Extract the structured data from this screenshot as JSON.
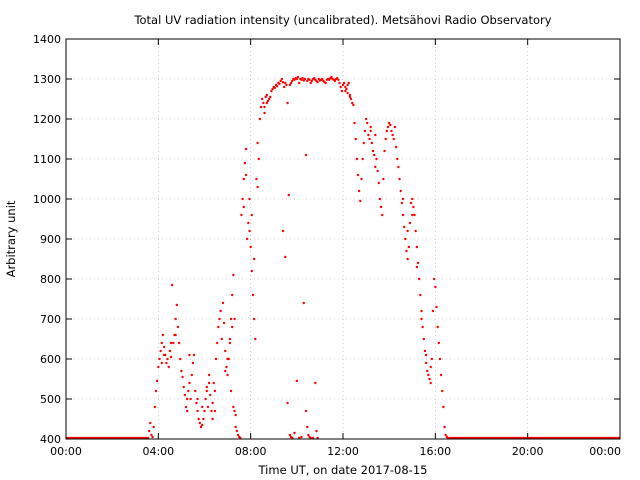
{
  "chart_data": {
    "type": "scatter",
    "title": "Total UV radiation intensity (uncalibrated). Metsähovi Radio Observatory",
    "xlabel": "Time UT, on date 2017-08-15",
    "ylabel": "Arbitrary unit",
    "x_unit": "hours UT",
    "xlim": [
      0,
      24
    ],
    "ylim": [
      400,
      1400
    ],
    "x_ticks": [
      {
        "value": 0,
        "label": "00:00"
      },
      {
        "value": 4,
        "label": "04:00"
      },
      {
        "value": 8,
        "label": "08:00"
      },
      {
        "value": 12,
        "label": "12:00"
      },
      {
        "value": 16,
        "label": "16:00"
      },
      {
        "value": 20,
        "label": "20:00"
      },
      {
        "value": 24,
        "label": "00:00"
      }
    ],
    "y_ticks": [
      {
        "value": 400,
        "label": "400"
      },
      {
        "value": 500,
        "label": "500"
      },
      {
        "value": 600,
        "label": "600"
      },
      {
        "value": 700,
        "label": "700"
      },
      {
        "value": 800,
        "label": "800"
      },
      {
        "value": 900,
        "label": "900"
      },
      {
        "value": 1000,
        "label": "1000"
      },
      {
        "value": 1100,
        "label": "1100"
      },
      {
        "value": 1200,
        "label": "1200"
      },
      {
        "value": 1300,
        "label": "1300"
      },
      {
        "value": 1400,
        "label": "1400"
      }
    ],
    "grid": true,
    "marker_color": "#ff0000",
    "baseline": {
      "y": 400,
      "x_ranges": [
        [
          0,
          3.6
        ],
        [
          16.6,
          24
        ]
      ]
    },
    "points": [
      [
        3.6,
        420
      ],
      [
        3.65,
        440
      ],
      [
        3.7,
        410
      ],
      [
        3.75,
        405
      ],
      [
        3.8,
        430
      ],
      [
        3.85,
        480
      ],
      [
        3.9,
        520
      ],
      [
        3.95,
        545
      ],
      [
        4.0,
        580
      ],
      [
        4.05,
        600
      ],
      [
        4.1,
        620
      ],
      [
        4.15,
        640
      ],
      [
        4.2,
        660
      ],
      [
        4.25,
        630
      ],
      [
        4.3,
        610
      ],
      [
        4.35,
        590
      ],
      [
        4.4,
        600
      ],
      [
        4.45,
        580
      ],
      [
        4.5,
        620
      ],
      [
        4.55,
        605
      ],
      [
        4.6,
        785
      ],
      [
        4.65,
        640
      ],
      [
        4.7,
        660
      ],
      [
        4.75,
        700
      ],
      [
        4.8,
        735
      ],
      [
        4.85,
        680
      ],
      [
        4.9,
        640
      ],
      [
        4.95,
        600
      ],
      [
        5.0,
        570
      ],
      [
        5.05,
        555
      ],
      [
        5.1,
        530
      ],
      [
        5.15,
        510
      ],
      [
        5.2,
        480
      ],
      [
        5.25,
        470
      ],
      [
        5.3,
        520
      ],
      [
        5.35,
        540
      ],
      [
        5.4,
        500
      ],
      [
        5.45,
        560
      ],
      [
        5.5,
        590
      ],
      [
        5.55,
        610
      ],
      [
        5.6,
        520
      ],
      [
        5.65,
        490
      ],
      [
        5.7,
        470
      ],
      [
        5.75,
        450
      ],
      [
        5.8,
        440
      ],
      [
        5.85,
        430
      ],
      [
        5.9,
        435
      ],
      [
        5.95,
        450
      ],
      [
        6.0,
        470
      ],
      [
        6.05,
        500
      ],
      [
        6.1,
        520
      ],
      [
        6.15,
        480
      ],
      [
        6.2,
        540
      ],
      [
        6.25,
        510
      ],
      [
        6.3,
        470
      ],
      [
        6.35,
        450
      ],
      [
        6.4,
        540
      ],
      [
        6.45,
        520
      ],
      [
        6.5,
        600
      ],
      [
        6.55,
        640
      ],
      [
        6.6,
        680
      ],
      [
        6.65,
        700
      ],
      [
        6.7,
        720
      ],
      [
        6.75,
        650
      ],
      [
        6.8,
        740
      ],
      [
        6.85,
        690
      ],
      [
        6.9,
        620
      ],
      [
        6.95,
        580
      ],
      [
        7.0,
        560
      ],
      [
        7.05,
        600
      ],
      [
        7.1,
        640
      ],
      [
        7.15,
        700
      ],
      [
        7.2,
        760
      ],
      [
        7.25,
        810
      ],
      [
        7.3,
        470
      ],
      [
        7.35,
        430
      ],
      [
        7.4,
        420
      ],
      [
        7.45,
        410
      ],
      [
        7.5,
        405
      ],
      [
        7.55,
        400
      ],
      [
        7.6,
        960
      ],
      [
        7.65,
        1000
      ],
      [
        7.7,
        1050
      ],
      [
        7.75,
        1090
      ],
      [
        7.8,
        1125
      ],
      [
        7.85,
        900
      ],
      [
        7.9,
        940
      ],
      [
        7.95,
        920
      ],
      [
        8.0,
        880
      ],
      [
        8.05,
        820
      ],
      [
        8.1,
        760
      ],
      [
        8.15,
        700
      ],
      [
        8.2,
        650
      ],
      [
        8.25,
        1050
      ],
      [
        8.3,
        1140
      ],
      [
        8.35,
        1100
      ],
      [
        8.4,
        1200
      ],
      [
        8.45,
        1230
      ],
      [
        8.5,
        1250
      ],
      [
        8.55,
        1240
      ],
      [
        8.6,
        1215
      ],
      [
        8.65,
        1255
      ],
      [
        8.7,
        1260
      ],
      [
        8.75,
        1245
      ],
      [
        8.8,
        1250
      ],
      [
        8.85,
        1255
      ],
      [
        8.9,
        1270
      ],
      [
        8.95,
        1275
      ],
      [
        9.0,
        1280
      ],
      [
        9.05,
        1278
      ],
      [
        9.1,
        1285
      ],
      [
        9.15,
        1282
      ],
      [
        9.2,
        1290
      ],
      [
        9.25,
        1288
      ],
      [
        9.3,
        1295
      ],
      [
        9.35,
        1300
      ],
      [
        9.4,
        1292
      ],
      [
        9.45,
        1280
      ],
      [
        9.5,
        1290
      ],
      [
        9.55,
        1285
      ],
      [
        9.6,
        1240
      ],
      [
        9.65,
        1010
      ],
      [
        9.7,
        1285
      ],
      [
        9.75,
        1290
      ],
      [
        9.8,
        1295
      ],
      [
        9.85,
        1300
      ],
      [
        9.9,
        1298
      ],
      [
        9.95,
        1302
      ],
      [
        10.0,
        1300
      ],
      [
        10.05,
        1305
      ],
      [
        10.1,
        1290
      ],
      [
        10.15,
        1300
      ],
      [
        10.2,
        1298
      ],
      [
        10.25,
        1302
      ],
      [
        10.3,
        1296
      ],
      [
        10.35,
        1300
      ],
      [
        10.4,
        1110
      ],
      [
        10.45,
        1295
      ],
      [
        10.5,
        1300
      ],
      [
        10.55,
        1298
      ],
      [
        10.6,
        1290
      ],
      [
        10.65,
        1295
      ],
      [
        10.7,
        1300
      ],
      [
        10.75,
        1302
      ],
      [
        10.8,
        1298
      ],
      [
        10.85,
        1295
      ],
      [
        10.9,
        1292
      ],
      [
        10.95,
        1300
      ],
      [
        11.0,
        1296
      ],
      [
        11.05,
        1298
      ],
      [
        11.1,
        1300
      ],
      [
        11.15,
        1295
      ],
      [
        11.2,
        1292
      ],
      [
        11.25,
        1290
      ],
      [
        11.3,
        1298
      ],
      [
        11.35,
        1300
      ],
      [
        11.4,
        1298
      ],
      [
        11.45,
        1302
      ],
      [
        11.5,
        1305
      ],
      [
        11.55,
        1300
      ],
      [
        11.6,
        1298
      ],
      [
        11.65,
        1295
      ],
      [
        11.7,
        1300
      ],
      [
        11.75,
        1302
      ],
      [
        11.8,
        1298
      ],
      [
        11.85,
        1290
      ],
      [
        11.9,
        1280
      ],
      [
        11.95,
        1270
      ],
      [
        12.0,
        1285
      ],
      [
        12.05,
        1290
      ],
      [
        12.1,
        1280
      ],
      [
        12.15,
        1275
      ],
      [
        12.2,
        1285
      ],
      [
        12.25,
        1290
      ],
      [
        12.3,
        1260
      ],
      [
        12.35,
        1250
      ],
      [
        12.4,
        1240
      ],
      [
        12.45,
        1235
      ],
      [
        12.5,
        1190
      ],
      [
        12.55,
        1150
      ],
      [
        12.6,
        1100
      ],
      [
        12.65,
        1060
      ],
      [
        12.7,
        1020
      ],
      [
        12.75,
        995
      ],
      [
        12.8,
        1050
      ],
      [
        12.85,
        1100
      ],
      [
        12.9,
        1140
      ],
      [
        12.95,
        1170
      ],
      [
        13.0,
        1200
      ],
      [
        13.05,
        1190
      ],
      [
        13.1,
        1160
      ],
      [
        13.15,
        1150
      ],
      [
        13.2,
        1170
      ],
      [
        13.25,
        1140
      ],
      [
        13.3,
        1120
      ],
      [
        13.35,
        1110
      ],
      [
        13.4,
        1080
      ],
      [
        13.45,
        1100
      ],
      [
        13.5,
        1070
      ],
      [
        13.55,
        1040
      ],
      [
        13.6,
        1000
      ],
      [
        13.65,
        980
      ],
      [
        13.7,
        960
      ],
      [
        13.75,
        1050
      ],
      [
        13.8,
        1120
      ],
      [
        13.85,
        1150
      ],
      [
        13.9,
        1170
      ],
      [
        13.95,
        1180
      ],
      [
        14.0,
        1190
      ],
      [
        14.05,
        1185
      ],
      [
        14.1,
        1170
      ],
      [
        14.15,
        1160
      ],
      [
        14.2,
        1150
      ],
      [
        14.25,
        1180
      ],
      [
        14.3,
        1130
      ],
      [
        14.35,
        1100
      ],
      [
        14.4,
        1080
      ],
      [
        14.45,
        1050
      ],
      [
        14.5,
        1020
      ],
      [
        14.55,
        990
      ],
      [
        14.6,
        960
      ],
      [
        14.65,
        930
      ],
      [
        14.7,
        900
      ],
      [
        14.75,
        870
      ],
      [
        14.8,
        850
      ],
      [
        14.85,
        880
      ],
      [
        14.9,
        940
      ],
      [
        14.95,
        990
      ],
      [
        15.0,
        1000
      ],
      [
        15.05,
        980
      ],
      [
        15.1,
        960
      ],
      [
        15.15,
        920
      ],
      [
        15.2,
        880
      ],
      [
        15.25,
        840
      ],
      [
        15.3,
        800
      ],
      [
        15.35,
        760
      ],
      [
        15.4,
        720
      ],
      [
        15.45,
        680
      ],
      [
        15.5,
        650
      ],
      [
        15.55,
        620
      ],
      [
        15.6,
        590
      ],
      [
        15.65,
        570
      ],
      [
        15.7,
        560
      ],
      [
        15.75,
        550
      ],
      [
        15.8,
        540
      ],
      [
        15.85,
        600
      ],
      [
        15.9,
        720
      ],
      [
        15.95,
        800
      ],
      [
        16.0,
        780
      ],
      [
        16.05,
        730
      ],
      [
        16.1,
        680
      ],
      [
        16.15,
        640
      ],
      [
        16.2,
        600
      ],
      [
        16.25,
        560
      ],
      [
        16.3,
        520
      ],
      [
        16.35,
        480
      ],
      [
        16.4,
        430
      ],
      [
        16.45,
        410
      ],
      [
        16.5,
        405
      ],
      [
        16.55,
        400
      ],
      [
        9.4,
        920
      ],
      [
        9.5,
        855
      ],
      [
        9.6,
        490
      ],
      [
        9.7,
        410
      ],
      [
        9.75,
        405
      ],
      [
        9.8,
        402
      ],
      [
        9.9,
        415
      ],
      [
        10.0,
        545
      ],
      [
        10.1,
        402
      ],
      [
        10.2,
        405
      ],
      [
        10.3,
        740
      ],
      [
        10.4,
        470
      ],
      [
        10.45,
        430
      ],
      [
        10.5,
        410
      ],
      [
        10.55,
        405
      ],
      [
        10.6,
        400
      ],
      [
        10.7,
        402
      ],
      [
        10.8,
        540
      ],
      [
        10.85,
        420
      ],
      [
        10.9,
        400
      ],
      [
        7.3,
        700
      ],
      [
        7.2,
        680
      ],
      [
        7.1,
        650
      ],
      [
        7.0,
        600
      ],
      [
        6.9,
        570
      ],
      [
        7.15,
        520
      ],
      [
        7.25,
        480
      ],
      [
        7.35,
        460
      ],
      [
        6.45,
        470
      ],
      [
        6.35,
        490
      ],
      [
        5.9,
        480
      ],
      [
        6.1,
        530
      ],
      [
        6.2,
        560
      ],
      [
        5.7,
        500
      ],
      [
        5.35,
        610
      ],
      [
        5.25,
        500
      ],
      [
        4.75,
        660
      ],
      [
        4.55,
        640
      ],
      [
        4.25,
        610
      ],
      [
        4.15,
        590
      ],
      [
        12.1,
        1270
      ],
      [
        12.2,
        1265
      ],
      [
        12.3,
        1255
      ],
      [
        13.2,
        1180
      ],
      [
        13.4,
        1160
      ],
      [
        14.6,
        1000
      ],
      [
        14.8,
        920
      ],
      [
        15.0,
        960
      ],
      [
        15.2,
        830
      ],
      [
        15.4,
        700
      ],
      [
        15.6,
        610
      ],
      [
        15.8,
        580
      ],
      [
        8.3,
        1030
      ],
      [
        8.15,
        850
      ],
      [
        8.05,
        960
      ],
      [
        7.95,
        1000
      ],
      [
        7.7,
        980
      ],
      [
        7.8,
        1060
      ],
      [
        8.6,
        1230
      ],
      [
        8.7,
        1240
      ]
    ]
  }
}
